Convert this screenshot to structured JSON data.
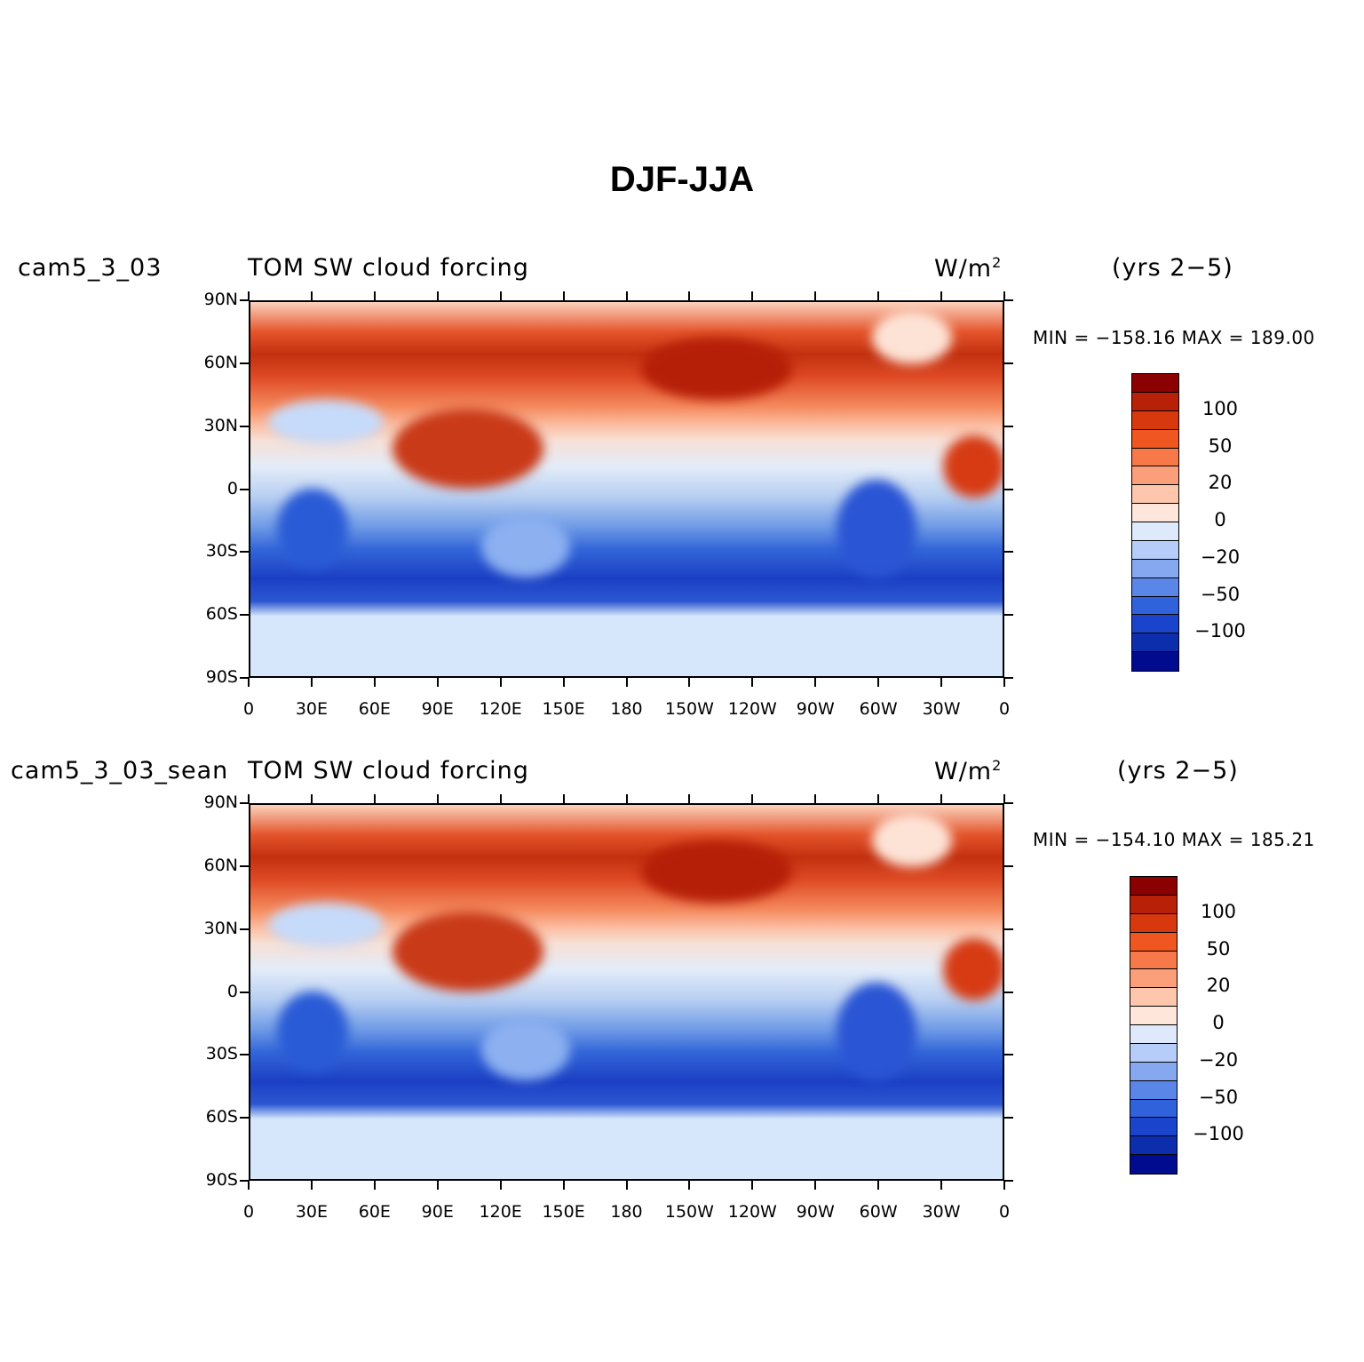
{
  "title": "DJF-JJA",
  "panels": [
    {
      "case": "cam5_3_03",
      "variable": "TOM SW cloud forcing",
      "units": "W/m",
      "units_sup": "2",
      "years": "(yrs 2−5)",
      "minmax": "MIN = −158.16  MAX = 189.00"
    },
    {
      "case": "cam5_3_03_sean",
      "variable": "TOM SW cloud forcing",
      "units": "W/m",
      "units_sup": "2",
      "years": "(yrs 2−5)",
      "minmax": "MIN = −154.10  MAX = 185.21"
    }
  ],
  "lat_labels": [
    "90N",
    "60N",
    "30N",
    "0",
    "30S",
    "60S",
    "90S"
  ],
  "lon_labels": [
    "0",
    "30E",
    "60E",
    "90E",
    "120E",
    "150E",
    "180",
    "150W",
    "120W",
    "90W",
    "60W",
    "30W",
    "0"
  ],
  "colorbar": {
    "colors": [
      "#8b0000",
      "#b82008",
      "#d8380e",
      "#ef5620",
      "#f7794a",
      "#fb9f7a",
      "#fdc6ad",
      "#fee7da",
      "#deeafc",
      "#b5cdf8",
      "#86a8f0",
      "#5a86e8",
      "#3062dc",
      "#1a44cc",
      "#0d2eac",
      "#000b8f"
    ],
    "labels": [
      "100",
      "50",
      "20",
      "0",
      "−20",
      "−50",
      "−100"
    ]
  }
}
